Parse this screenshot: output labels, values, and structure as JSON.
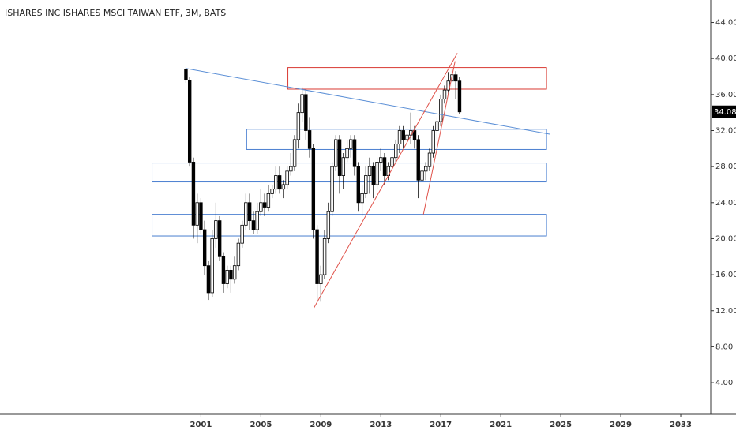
{
  "chart_data": {
    "type": "candlestick",
    "title": "ISHARES INC ISHARES MSCI TAIWAN ETF, 3M, BATS",
    "x": [
      2000.0,
      2000.25,
      2000.5,
      2000.75,
      2001.0,
      2001.25,
      2001.5,
      2001.75,
      2002.0,
      2002.25,
      2002.5,
      2002.75,
      2003.0,
      2003.25,
      2003.5,
      2003.75,
      2004.0,
      2004.25,
      2004.5,
      2004.75,
      2005.0,
      2005.25,
      2005.5,
      2005.75,
      2006.0,
      2006.25,
      2006.5,
      2006.75,
      2007.0,
      2007.25,
      2007.5,
      2007.75,
      2008.0,
      2008.25,
      2008.5,
      2008.75,
      2009.0,
      2009.25,
      2009.5,
      2009.75,
      2010.0,
      2010.25,
      2010.5,
      2010.75,
      2011.0,
      2011.25,
      2011.5,
      2011.75,
      2012.0,
      2012.25,
      2012.5,
      2012.75,
      2013.0,
      2013.25,
      2013.5,
      2013.75,
      2014.0,
      2014.25,
      2014.5,
      2014.75,
      2015.0,
      2015.25,
      2015.5,
      2015.75,
      2016.0,
      2016.25,
      2016.5,
      2016.75,
      2017.0,
      2017.25,
      2017.5,
      2017.75,
      2018.0,
      2018.25
    ],
    "open": [
      38.8,
      37.6,
      28.5,
      21.5,
      24,
      21,
      17,
      14,
      20,
      22,
      18,
      15,
      16.5,
      15.5,
      17,
      19.5,
      21.5,
      24,
      22,
      21,
      23,
      24,
      23.5,
      25,
      25.5,
      27,
      25.5,
      26,
      27.5,
      28,
      31,
      34,
      36,
      32,
      30,
      21,
      15,
      16,
      20,
      23,
      28,
      31,
      27,
      29,
      30,
      31,
      28,
      24,
      25,
      27,
      28,
      26,
      28.5,
      29,
      27,
      28,
      29,
      30.5,
      32,
      31,
      31.5,
      32,
      31,
      26.5,
      27.5,
      28,
      29.5,
      32,
      33,
      35.5,
      36.5,
      37.5,
      38.2,
      37.5
    ],
    "high": [
      39,
      38,
      29,
      25,
      24.5,
      22,
      17.5,
      21,
      24,
      22.5,
      18.5,
      17,
      17,
      18,
      20,
      22,
      25,
      25,
      23,
      24,
      25.5,
      25,
      26,
      26,
      28,
      28,
      26.5,
      28,
      29.5,
      31.5,
      35,
      36.8,
      36.5,
      33.5,
      30.5,
      21.5,
      17,
      21,
      24,
      28.5,
      31.5,
      31.5,
      29.5,
      31,
      31.5,
      31.5,
      28.5,
      26,
      28,
      29,
      28.5,
      29,
      30,
      29.5,
      28.5,
      30,
      31,
      32.5,
      32.5,
      32,
      34,
      32.5,
      31.5,
      28.5,
      28.5,
      30,
      32.5,
      33.5,
      36,
      37,
      38.5,
      38.8,
      38.6,
      38
    ],
    "low": [
      37.3,
      28,
      20,
      19.5,
      20.5,
      16,
      13.2,
      13.5,
      19,
      17.5,
      14,
      14.5,
      14,
      15,
      16.5,
      19,
      21,
      21,
      20.5,
      20.5,
      22.5,
      22.5,
      23,
      24.5,
      25,
      25,
      24.5,
      25.5,
      27,
      27.5,
      30,
      33,
      31,
      29,
      20,
      13,
      13,
      15.5,
      19.5,
      22.5,
      27.5,
      25,
      25.5,
      28.5,
      29,
      27,
      23,
      22.5,
      24.5,
      25,
      24.5,
      25.5,
      27.5,
      26,
      26.5,
      28,
      28.5,
      29.5,
      30,
      30,
      30.5,
      30,
      24.5,
      22.5,
      26.5,
      27.5,
      29,
      31,
      32.5,
      35,
      36,
      36.5,
      35.5,
      33.8
    ],
    "close": [
      37.6,
      28.5,
      21.5,
      24,
      21,
      17,
      14,
      20,
      22,
      18,
      15,
      16.5,
      15.5,
      17,
      19.5,
      21.5,
      24,
      22,
      21,
      23,
      24,
      23.5,
      25,
      25.5,
      27,
      25.5,
      26,
      27.5,
      28,
      31,
      34,
      36,
      32,
      30,
      21,
      15,
      16,
      20,
      23,
      28,
      31,
      27,
      29,
      30,
      31,
      28,
      24,
      25,
      27,
      28,
      26,
      28.5,
      29,
      27,
      28,
      29,
      30.5,
      32,
      31,
      31.5,
      32,
      31,
      26.5,
      27.5,
      28,
      29.5,
      32,
      33,
      35.5,
      36.5,
      37.5,
      38.2,
      37.5,
      34.08
    ],
    "up_color": "#ffffff",
    "down_color": "#000000",
    "xlim": [
      1987.6,
      2035
    ],
    "ylim": [
      0.5,
      46.5
    ],
    "xticks": [
      2001,
      2005,
      2009,
      2013,
      2017,
      2021,
      2025,
      2029,
      2033
    ],
    "yticks": [
      {
        "value": 4,
        "label": "4.00"
      },
      {
        "value": 8,
        "label": "8.00"
      },
      {
        "value": 12,
        "label": "12.00"
      },
      {
        "value": 16,
        "label": "16.00"
      },
      {
        "value": 20,
        "label": "20.00"
      },
      {
        "value": 24,
        "label": "24.00"
      },
      {
        "value": 28,
        "label": "28.00"
      },
      {
        "value": 32,
        "label": "32.00"
      },
      {
        "value": 36,
        "label": "36.00"
      },
      {
        "value": 40,
        "label": "40.00"
      },
      {
        "value": 44,
        "label": "44.00"
      }
    ],
    "lines": [
      {
        "color": "#5b8fd6",
        "x": [
          2000.0,
          2024.26
        ],
        "y": [
          38.9,
          31.6
        ]
      },
      {
        "color": "#e0524a",
        "x": [
          2008.53,
          2018.1
        ],
        "y": [
          12.3,
          40.6
        ]
      },
      {
        "color": "#e0524a",
        "x": [
          2015.84,
          2017.95
        ],
        "y": [
          22.7,
          39.7
        ]
      }
    ],
    "zones": [
      {
        "color": "#d93a32",
        "x": [
          2006.8,
          2024.05
        ],
        "y": [
          36.6,
          39.0
        ]
      },
      {
        "color": "#4a7fd0",
        "x": [
          2004.05,
          2024.05
        ],
        "y": [
          29.9,
          32.15
        ]
      },
      {
        "color": "#4a7fd0",
        "x": [
          1997.74,
          2024.05
        ],
        "y": [
          26.3,
          28.4
        ]
      },
      {
        "color": "#4a7fd0",
        "x": [
          1997.74,
          2024.05
        ],
        "y": [
          20.3,
          22.7
        ]
      }
    ]
  }
}
